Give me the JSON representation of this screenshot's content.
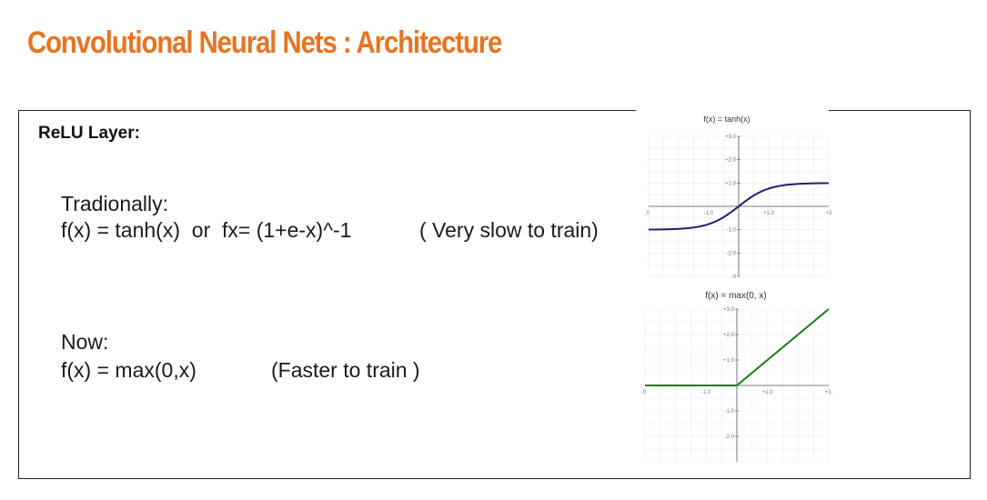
{
  "slide": {
    "title": "Convolutional Neural Nets : Architecture"
  },
  "section": {
    "heading": "ReLU Layer:",
    "traditional_label": "Tradionally:",
    "traditional_formula": "f(x) = tanh(x)  or  fx= (1+e-x)^-1",
    "traditional_note": "( Very slow to train)",
    "now_label": "Now:",
    "now_formula": "f(x) = max(0,x)",
    "now_note": "(Faster to train )"
  },
  "chart_data": [
    {
      "type": "line",
      "title": "f(x) = tanh(x)",
      "function": "tanh",
      "xlim": [
        -3,
        3
      ],
      "ylim": [
        -3,
        3
      ],
      "x_ticks": [
        "-1.0",
        "+1.0",
        "+3"
      ],
      "y_ticks": [
        "+3.0",
        "+2.0",
        "+1.0",
        "-1.0",
        "-2.0",
        "-3"
      ],
      "left_edge_label": ".0",
      "grid": true,
      "line_color": "#1f1f6e"
    },
    {
      "type": "line",
      "title": "f(x) = max(0, x)",
      "function": "relu",
      "xlim": [
        -3,
        3
      ],
      "ylim": [
        -3,
        3
      ],
      "x_ticks": [
        "-1.0",
        "+1.0",
        "+3."
      ],
      "y_ticks": [
        "+3.0",
        "+2.0",
        "+1.0",
        "-1.0",
        "-2.0"
      ],
      "left_edge_label": ".0",
      "grid": true,
      "line_color": "#1e7a1e"
    }
  ]
}
